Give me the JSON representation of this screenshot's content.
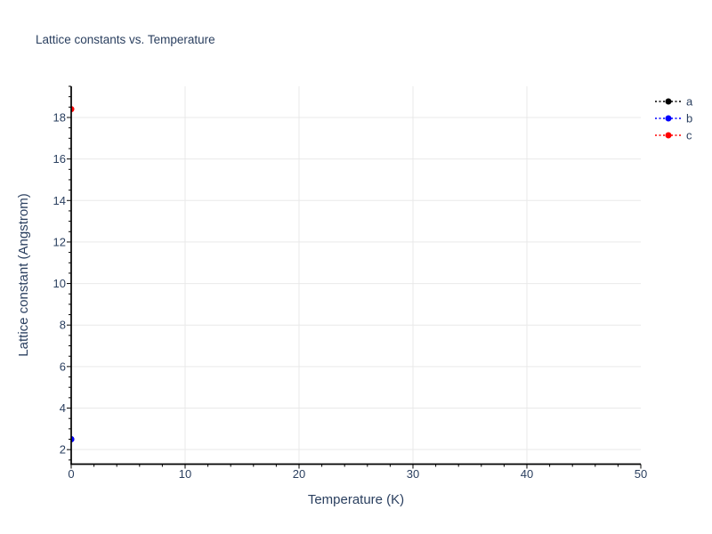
{
  "chart_data": {
    "type": "scatter",
    "title": "Lattice constants vs. Temperature",
    "xlabel": "Temperature (K)",
    "ylabel": "Lattice constant (Angstrom)",
    "xlim": [
      0,
      50
    ],
    "ylim": [
      1.3,
      19.5
    ],
    "x_major_ticks": [
      0,
      10,
      20,
      30,
      40,
      50
    ],
    "x_minor_step": 2,
    "y_major_ticks": [
      2,
      4,
      6,
      8,
      10,
      12,
      14,
      16,
      18
    ],
    "y_minor_step": 0.5,
    "x_gridlines": [
      10,
      20,
      30,
      40
    ],
    "grid_on": true,
    "legend_position": "top-right",
    "marker_style": "dotted-line-with-dot",
    "series": [
      {
        "name": "a",
        "color": "#000000",
        "x": [
          0
        ],
        "y": [
          2.5
        ],
        "note": "occluded by series b marker"
      },
      {
        "name": "b",
        "color": "#0000ff",
        "x": [
          0
        ],
        "y": [
          2.5
        ]
      },
      {
        "name": "c",
        "color": "#ff0000",
        "x": [
          0
        ],
        "y": [
          18.4
        ]
      }
    ],
    "colors": {
      "text": "#2a3f5f",
      "axis": "#000000",
      "grid": "#e9e9e9",
      "plot_background": "#ffffff",
      "paper_background": "#ffffff"
    }
  }
}
